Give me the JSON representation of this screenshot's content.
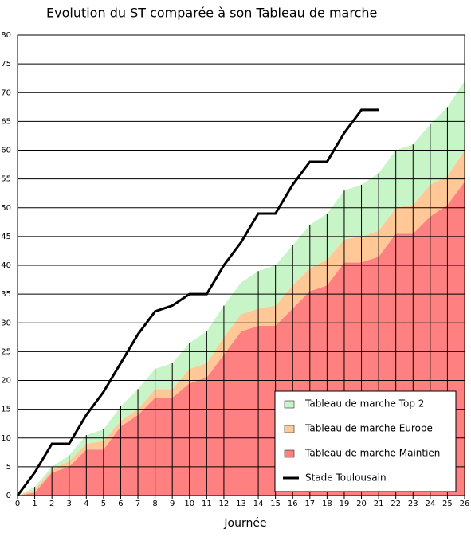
{
  "chart_data": {
    "type": "stacked_area_line",
    "title": "Evolution du ST comparée à son Tableau de marche",
    "x_label": "Journée",
    "x": [
      0,
      1,
      2,
      3,
      4,
      5,
      6,
      7,
      8,
      9,
      10,
      11,
      12,
      13,
      14,
      15,
      16,
      17,
      18,
      19,
      20,
      21,
      22,
      23,
      24,
      25,
      26
    ],
    "xlim": [
      0,
      26
    ],
    "xticks": [
      0,
      1,
      2,
      3,
      4,
      5,
      6,
      7,
      8,
      9,
      10,
      11,
      12,
      13,
      14,
      15,
      16,
      17,
      18,
      19,
      20,
      21,
      22,
      23,
      24,
      25,
      26
    ],
    "ylim": [
      0,
      80
    ],
    "yticks": [
      0,
      5,
      10,
      15,
      20,
      25,
      30,
      35,
      40,
      45,
      50,
      55,
      60,
      65,
      70,
      75,
      80
    ],
    "grid": true,
    "legend": "lower right",
    "series": [
      {
        "name": "Tableau de marche Maintien",
        "color": "#ff8080",
        "kind": "area",
        "values": [
          0,
          0.5,
          4,
          5,
          8,
          8,
          12,
          14,
          17,
          17,
          19.5,
          20.5,
          24.5,
          28.5,
          29.5,
          29.5,
          32.5,
          35.5,
          36.5,
          40.5,
          40.5,
          41.5,
          45.5,
          45.5,
          48.5,
          50.5,
          54.5
        ]
      },
      {
        "name": "Tableau de marche Europe",
        "color": "#ffc896",
        "kind": "area",
        "values": [
          0,
          0.5,
          0.5,
          1,
          1,
          1.5,
          1,
          1,
          1.5,
          1.5,
          2.5,
          2.5,
          3,
          3,
          3,
          3.5,
          4,
          4,
          4.5,
          4,
          4.5,
          4.5,
          4.5,
          5,
          5.5,
          5,
          5.5
        ]
      },
      {
        "name": "Tableau de marche Top 2",
        "color": "#c8f5c8",
        "kind": "area",
        "values": [
          0,
          0.5,
          0.5,
          1,
          1.5,
          2,
          2.5,
          3.5,
          3.5,
          4.5,
          4.5,
          5.5,
          5.5,
          5.5,
          6.5,
          7,
          7,
          7.5,
          8,
          8.5,
          9,
          10,
          10,
          10.5,
          10.5,
          12,
          12
        ]
      },
      {
        "name": "Stade Toulousain",
        "color": "#000000",
        "kind": "line",
        "values": [
          0,
          4,
          9,
          9,
          14,
          18,
          23,
          28,
          32,
          33,
          35,
          35,
          40,
          44,
          49,
          49,
          54,
          58,
          58,
          63,
          67,
          67,
          null,
          null,
          null,
          null,
          null
        ]
      }
    ]
  }
}
